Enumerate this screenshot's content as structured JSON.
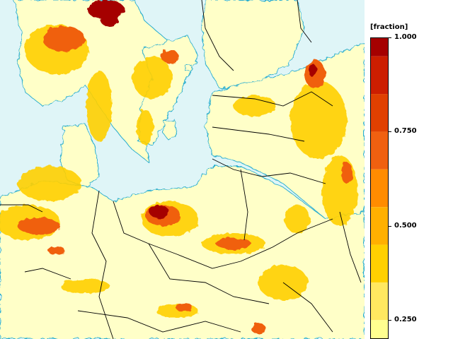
{
  "legend": {
    "unit": "[fraction]",
    "ticks": [
      "1.000",
      "0.750",
      "0.500",
      "0.250"
    ],
    "tick_values": [
      1.0,
      0.75,
      0.5,
      0.25
    ],
    "bands": [
      {
        "from": 0.95,
        "to": 1.0,
        "color": "#a50000"
      },
      {
        "from": 0.85,
        "to": 0.95,
        "color": "#cc1e00"
      },
      {
        "from": 0.75,
        "to": 0.85,
        "color": "#e04000"
      },
      {
        "from": 0.65,
        "to": 0.75,
        "color": "#f06010"
      },
      {
        "from": 0.55,
        "to": 0.65,
        "color": "#ff8c00"
      },
      {
        "from": 0.45,
        "to": 0.55,
        "color": "#ffb000"
      },
      {
        "from": 0.35,
        "to": 0.45,
        "color": "#ffd000"
      },
      {
        "from": 0.25,
        "to": 0.35,
        "color": "#ffe860"
      },
      {
        "from": 0.2,
        "to": 0.25,
        "color": "#ffff90"
      }
    ]
  },
  "colors": {
    "sea": "#dff5f7",
    "land_low": "#ffffc0",
    "contour": "#2aaecf",
    "border": "#000000"
  }
}
